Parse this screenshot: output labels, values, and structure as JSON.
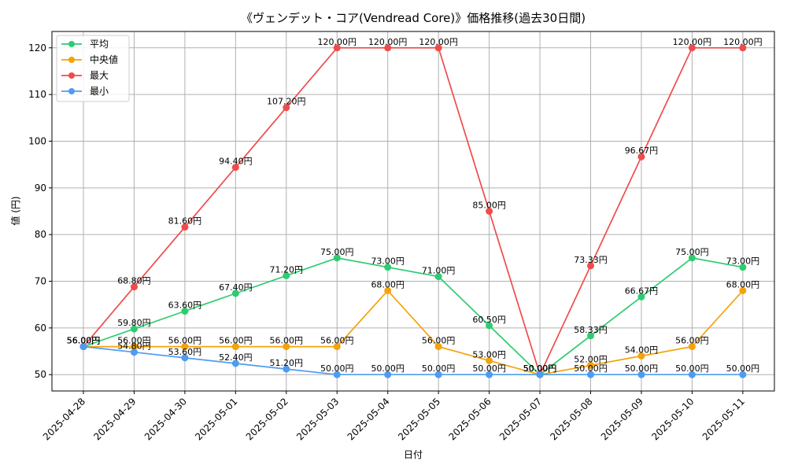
{
  "chart_data": {
    "type": "line",
    "title": "《ヴェンデット・コア(Vendread Core)》価格推移(過去30日間)",
    "xlabel": "日付",
    "ylabel": "値 (円)",
    "categories": [
      "2025-04-28",
      "2025-04-29",
      "2025-04-30",
      "2025-05-01",
      "2025-05-02",
      "2025-05-03",
      "2025-05-04",
      "2025-05-05",
      "2025-05-06",
      "2025-05-07",
      "2025-05-08",
      "2025-05-09",
      "2025-05-10",
      "2025-05-11"
    ],
    "ylim": [
      46.5,
      123.5
    ],
    "yticks": [
      50,
      60,
      70,
      80,
      90,
      100,
      110,
      120
    ],
    "grid": true,
    "legend_position": "top-left",
    "label_suffix": "円",
    "series": [
      {
        "name": "平均",
        "color": "#2ecc71",
        "values": [
          56.0,
          59.8,
          63.6,
          67.4,
          71.2,
          75.0,
          73.0,
          71.0,
          60.5,
          50.0,
          58.33,
          66.67,
          75.0,
          73.0
        ]
      },
      {
        "name": "中央値",
        "color": "#f5a30a",
        "values": [
          56.0,
          56.0,
          56.0,
          56.0,
          56.0,
          56.0,
          68.0,
          56.0,
          53.0,
          50.0,
          52.0,
          54.0,
          56.0,
          68.0
        ]
      },
      {
        "name": "最大",
        "color": "#ef4b4b",
        "values": [
          56.0,
          68.8,
          81.6,
          94.4,
          107.2,
          120.0,
          120.0,
          120.0,
          85.0,
          50.0,
          73.33,
          96.67,
          120.0,
          120.0
        ]
      },
      {
        "name": "最小",
        "color": "#4e9cf0",
        "values": [
          56.0,
          54.8,
          53.6,
          52.4,
          51.2,
          50.0,
          50.0,
          50.0,
          50.0,
          50.0,
          50.0,
          50.0,
          50.0,
          50.0
        ]
      }
    ]
  }
}
